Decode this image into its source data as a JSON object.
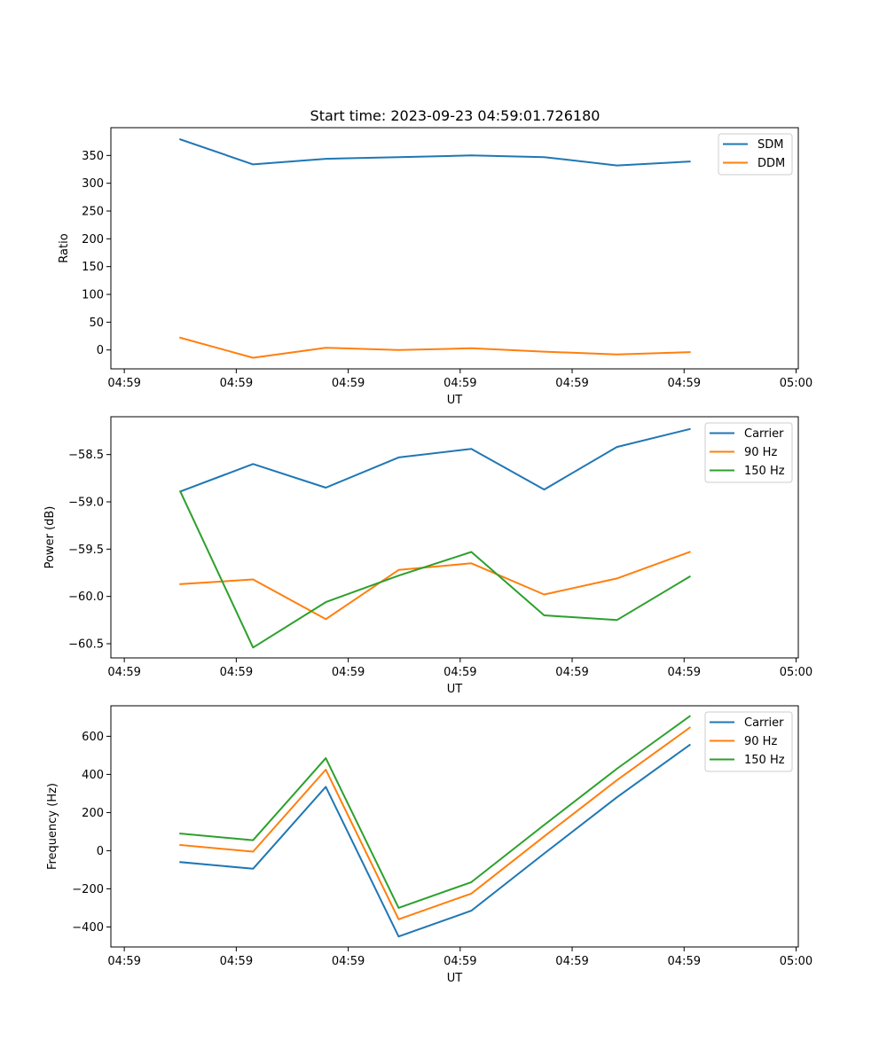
{
  "figure_title": "Start time: 2023-09-23 04:59:01.726180",
  "colors": {
    "blue": "#1f77b4",
    "orange": "#ff7f0e",
    "green": "#2ca02c"
  },
  "chart_data": [
    {
      "type": "line",
      "title": "Start time: 2023-09-23 04:59:01.726180",
      "xlabel": "UT",
      "ylabel": "Ratio",
      "x_tick_labels": [
        "04:59",
        "04:59",
        "04:59",
        "04:59",
        "04:59",
        "04:59",
        "05:00"
      ],
      "x_tick_values": [
        0,
        1,
        2,
        3,
        4,
        5,
        6
      ],
      "xlim": [
        -0.12,
        6.02
      ],
      "x": [
        0.5,
        1.15,
        1.8,
        2.45,
        3.1,
        3.75,
        4.4,
        5.05
      ],
      "ylim": [
        -34,
        400
      ],
      "y_ticks": [
        0,
        50,
        100,
        150,
        200,
        250,
        300,
        350
      ],
      "legend_location": "top-right",
      "series": [
        {
          "name": "SDM",
          "color": "#1f77b4",
          "values": [
            379,
            334,
            344,
            347,
            350,
            347,
            332,
            339
          ]
        },
        {
          "name": "DDM",
          "color": "#ff7f0e",
          "values": [
            22,
            -14,
            4,
            0,
            3,
            -3,
            -8,
            -4
          ]
        }
      ]
    },
    {
      "type": "line",
      "xlabel": "UT",
      "ylabel": "Power (dB)",
      "x_tick_labels": [
        "04:59",
        "04:59",
        "04:59",
        "04:59",
        "04:59",
        "04:59",
        "05:00"
      ],
      "x_tick_values": [
        0,
        1,
        2,
        3,
        4,
        5,
        6
      ],
      "xlim": [
        -0.12,
        6.02
      ],
      "x": [
        0.5,
        1.15,
        1.8,
        2.45,
        3.1,
        3.75,
        4.4,
        5.05
      ],
      "ylim": [
        -60.65,
        -58.1
      ],
      "y_ticks": [
        -60.5,
        -60.0,
        -59.5,
        -59.0,
        -58.5
      ],
      "y_tick_labels": [
        "−60.5",
        "−60.0",
        "−59.5",
        "−59.0",
        "−58.5"
      ],
      "legend_location": "top-right",
      "series": [
        {
          "name": "Carrier",
          "color": "#1f77b4",
          "values": [
            -58.89,
            -58.6,
            -58.85,
            -58.53,
            -58.44,
            -58.87,
            -58.42,
            -58.23
          ]
        },
        {
          "name": "90 Hz",
          "color": "#ff7f0e",
          "values": [
            -59.87,
            -59.82,
            -60.24,
            -59.72,
            -59.65,
            -59.98,
            -59.81,
            -59.53
          ]
        },
        {
          "name": "150 Hz",
          "color": "#2ca02c",
          "values": [
            -58.89,
            -60.54,
            -60.06,
            -59.78,
            -59.53,
            -60.2,
            -60.25,
            -59.79
          ]
        }
      ]
    },
    {
      "type": "line",
      "xlabel": "UT",
      "ylabel": "Frequency (Hz)",
      "x_tick_labels": [
        "04:59",
        "04:59",
        "04:59",
        "04:59",
        "04:59",
        "04:59",
        "05:00"
      ],
      "x_tick_values": [
        0,
        1,
        2,
        3,
        4,
        5,
        6
      ],
      "xlim": [
        -0.12,
        6.02
      ],
      "x": [
        0.5,
        1.15,
        1.8,
        2.45,
        3.1,
        3.75,
        4.4,
        5.05
      ],
      "ylim": [
        -505,
        760
      ],
      "y_ticks": [
        -400,
        -200,
        0,
        200,
        400,
        600
      ],
      "y_tick_labels": [
        "−400",
        "−200",
        "0",
        "200",
        "400",
        "600"
      ],
      "legend_location": "top-right",
      "series": [
        {
          "name": "Carrier",
          "color": "#1f77b4",
          "values": [
            -60,
            -95,
            335,
            -450,
            -315,
            -15,
            280,
            555
          ]
        },
        {
          "name": "90 Hz",
          "color": "#ff7f0e",
          "values": [
            30,
            -5,
            425,
            -360,
            -225,
            75,
            370,
            645
          ]
        },
        {
          "name": "150 Hz",
          "color": "#2ca02c",
          "values": [
            90,
            55,
            485,
            -300,
            -165,
            135,
            430,
            705
          ]
        }
      ]
    }
  ]
}
